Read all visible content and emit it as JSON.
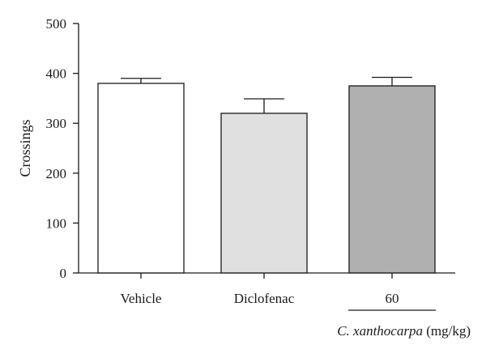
{
  "chart_data": {
    "type": "bar",
    "categories": [
      "Vehicle",
      "Diclofenac",
      "60"
    ],
    "values": [
      380,
      320,
      375
    ],
    "errors": [
      10,
      29,
      17
    ],
    "bar_colors": [
      "#ffffff",
      "#e0e0e0",
      "#b0b0b0"
    ],
    "ylabel": "Crossings",
    "xlabel": "",
    "ylim": [
      0,
      500
    ],
    "yticks": [
      "0",
      "100",
      "200",
      "300",
      "400",
      "500"
    ],
    "group_label": {
      "italic": "C. xanthocarpa",
      "plain": " (mg/kg)"
    }
  }
}
